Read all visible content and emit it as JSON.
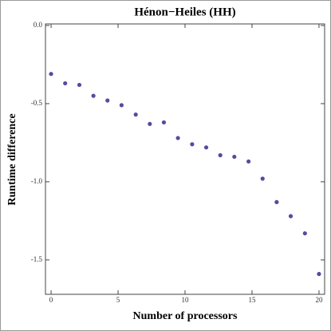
{
  "chart_data": {
    "type": "scatter",
    "title": "Hénon−Heiles (HH)",
    "x_label": "Number of processors",
    "y_label": "Runtime difference",
    "color": "#574aa0",
    "x": [
      0,
      1.05,
      2.11,
      3.16,
      4.21,
      5.26,
      6.32,
      7.37,
      8.42,
      9.47,
      10.53,
      11.58,
      12.63,
      13.68,
      14.74,
      15.79,
      16.84,
      17.89,
      18.95,
      20
    ],
    "values": [
      -0.31,
      -0.37,
      -0.38,
      -0.45,
      -0.48,
      -0.51,
      -0.57,
      -0.63,
      -0.62,
      -0.72,
      -0.76,
      -0.78,
      -0.83,
      -0.84,
      -0.87,
      -0.98,
      -1.13,
      -1.22,
      -1.33,
      -1.59
    ],
    "xlim": [
      -0.42,
      20.42
    ],
    "ylim": [
      -1.72,
      0.01
    ],
    "xticks": [
      0,
      5,
      10,
      15,
      20
    ],
    "yticks": [
      {
        "value": 0,
        "label": "0.0"
      },
      {
        "value": -0.5,
        "label": "-0.5"
      },
      {
        "value": -1,
        "label": "-1.0"
      },
      {
        "value": -1.5,
        "label": "-1.5"
      }
    ]
  }
}
